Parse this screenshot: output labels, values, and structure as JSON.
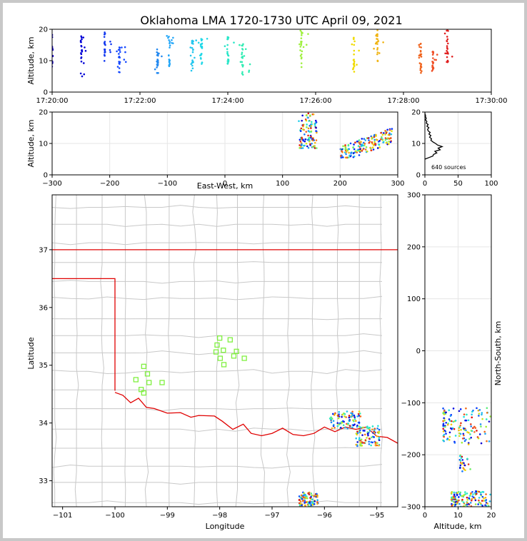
{
  "chart_data": [
    {
      "panel": "altitude-time",
      "type": "scatter",
      "title": "Oklahoma LMA 1720-1730 UTC April 09, 2021",
      "ylabel": "Altitude, km",
      "xlim": [
        "17:20:00",
        "17:30:00"
      ],
      "ylim": [
        0,
        20
      ],
      "x_tick_labels": [
        "17:20:00",
        "17:22:00",
        "17:24:00",
        "17:26:00",
        "17:28:00",
        "17:30:00"
      ],
      "y_tick_labels": [
        "0",
        "10",
        "20"
      ],
      "color_scale": "time",
      "flash_groups": [
        {
          "time": "17:20:00",
          "alt_range": [
            8,
            20
          ],
          "color": "#1400c8"
        },
        {
          "time": "17:20:40",
          "alt_range": [
            5,
            18
          ],
          "color": "#0000d6"
        },
        {
          "time": "17:21:12",
          "alt_range": [
            9,
            19
          ],
          "color": "#1238f0"
        },
        {
          "time": "17:21:32",
          "alt_range": [
            6,
            15
          ],
          "color": "#1448ff"
        },
        {
          "time": "17:22:24",
          "alt_range": [
            6,
            14
          ],
          "color": "#2288f0"
        },
        {
          "time": "17:22:40",
          "alt_range": [
            8,
            18
          ],
          "color": "#22a6f8"
        },
        {
          "time": "17:23:12",
          "alt_range": [
            5.5,
            17
          ],
          "color": "#22c6ee"
        },
        {
          "time": "17:23:24",
          "alt_range": [
            8.5,
            18
          ],
          "color": "#20d8e8"
        },
        {
          "time": "17:24:00",
          "alt_range": [
            9,
            18
          ],
          "color": "#28e6c8"
        },
        {
          "time": "17:24:20",
          "alt_range": [
            5.5,
            16
          ],
          "color": "#32ecb4"
        },
        {
          "time": "17:25:40",
          "alt_range": [
            7,
            20
          ],
          "color": "#a0f040"
        },
        {
          "time": "17:26:52",
          "alt_range": [
            6,
            18
          ],
          "color": "#f0dc00"
        },
        {
          "time": "17:27:24",
          "alt_range": [
            9,
            20
          ],
          "color": "#f0b414"
        },
        {
          "time": "17:28:24",
          "alt_range": [
            6,
            16
          ],
          "color": "#f0641e"
        },
        {
          "time": "17:28:40",
          "alt_range": [
            6.5,
            13
          ],
          "color": "#f05028"
        },
        {
          "time": "17:29:00",
          "alt_range": [
            9,
            20
          ],
          "color": "#e01e1e"
        }
      ]
    },
    {
      "panel": "altitude-eastwest",
      "type": "scatter",
      "xlabel": "East-West, km",
      "ylabel": "Altitude, km",
      "xlim": [
        -300,
        300
      ],
      "ylim": [
        0,
        20
      ],
      "x_tick_labels": [
        "−300",
        "−200",
        "−100",
        "0",
        "100",
        "200",
        "300"
      ],
      "y_tick_labels": [
        "0",
        "10",
        "20"
      ],
      "clusters": [
        {
          "x_range": [
            128,
            160
          ],
          "alt_range": [
            8.5,
            20
          ]
        },
        {
          "x_range": [
            200,
            290
          ],
          "alt_range": [
            5.5,
            19
          ]
        }
      ]
    },
    {
      "panel": "altitude-histogram",
      "type": "line",
      "xlim": [
        0,
        100
      ],
      "ylim": [
        0,
        20
      ],
      "x_tick_labels": [
        "0",
        "50",
        "100"
      ],
      "y_tick_labels": [
        "0",
        "10",
        "20"
      ],
      "annotation": "640 sources",
      "profile": [
        {
          "alt": 5.0,
          "count": 0
        },
        {
          "alt": 5.5,
          "count": 6
        },
        {
          "alt": 6.0,
          "count": 12
        },
        {
          "alt": 6.5,
          "count": 13
        },
        {
          "alt": 7.0,
          "count": 18
        },
        {
          "alt": 7.5,
          "count": 15
        },
        {
          "alt": 8.0,
          "count": 23
        },
        {
          "alt": 8.5,
          "count": 20
        },
        {
          "alt": 9.0,
          "count": 26
        },
        {
          "alt": 9.5,
          "count": 19
        },
        {
          "alt": 10.0,
          "count": 16
        },
        {
          "alt": 10.5,
          "count": 12
        },
        {
          "alt": 11.0,
          "count": 9
        },
        {
          "alt": 11.5,
          "count": 10
        },
        {
          "alt": 12.0,
          "count": 7
        },
        {
          "alt": 12.5,
          "count": 9
        },
        {
          "alt": 13.0,
          "count": 6
        },
        {
          "alt": 13.5,
          "count": 8
        },
        {
          "alt": 14.0,
          "count": 5
        },
        {
          "alt": 14.5,
          "count": 4
        },
        {
          "alt": 15.0,
          "count": 6
        },
        {
          "alt": 15.5,
          "count": 3
        },
        {
          "alt": 16.0,
          "count": 5
        },
        {
          "alt": 16.5,
          "count": 2
        },
        {
          "alt": 17.0,
          "count": 3
        },
        {
          "alt": 17.5,
          "count": 1
        },
        {
          "alt": 18.0,
          "count": 2
        },
        {
          "alt": 18.5,
          "count": 1
        },
        {
          "alt": 19.0,
          "count": 1
        },
        {
          "alt": 19.5,
          "count": 0
        },
        {
          "alt": 20.0,
          "count": 0
        }
      ]
    },
    {
      "panel": "plan-view-map",
      "type": "scatter",
      "xlabel": "Longitude",
      "ylabel": "Latitude",
      "xlim": [
        -101.2,
        -94.6
      ],
      "ylim": [
        32.55,
        37.95
      ],
      "x_tick_labels": [
        "−101",
        "−100",
        "−99",
        "−98",
        "−97",
        "−96",
        "−95"
      ],
      "y_tick_labels": [
        "33",
        "34",
        "35",
        "36",
        "37"
      ],
      "state_border_color": "#e00000",
      "county_line_color": "#c8c8c8",
      "station_color": "#80f040",
      "stations": [
        {
          "lon": -99.45,
          "lat": 34.98
        },
        {
          "lon": -99.38,
          "lat": 34.85
        },
        {
          "lon": -99.6,
          "lat": 34.75
        },
        {
          "lon": -99.35,
          "lat": 34.7
        },
        {
          "lon": -99.1,
          "lat": 34.7
        },
        {
          "lon": -99.5,
          "lat": 34.58
        },
        {
          "lon": -99.45,
          "lat": 34.52
        },
        {
          "lon": -98.0,
          "lat": 35.47
        },
        {
          "lon": -98.05,
          "lat": 35.35
        },
        {
          "lon": -97.8,
          "lat": 35.44
        },
        {
          "lon": -98.07,
          "lat": 35.23
        },
        {
          "lon": -97.93,
          "lat": 35.26
        },
        {
          "lon": -97.68,
          "lat": 35.24
        },
        {
          "lon": -97.73,
          "lat": 35.16
        },
        {
          "lon": -97.99,
          "lat": 35.12
        },
        {
          "lon": -97.53,
          "lat": 35.12
        },
        {
          "lon": -97.92,
          "lat": 35.01
        }
      ],
      "source_clusters": [
        {
          "lon_range": [
            -95.9,
            -95.3
          ],
          "lat_range": [
            33.9,
            34.2
          ]
        },
        {
          "lon_range": [
            -95.4,
            -94.95
          ],
          "lat_range": [
            33.6,
            33.95
          ]
        },
        {
          "lon_range": [
            -96.5,
            -96.1
          ],
          "lat_range": [
            32.55,
            32.8
          ]
        }
      ]
    },
    {
      "panel": "altitude-northsouth",
      "type": "scatter",
      "xlabel": "Altitude, km",
      "ylabel": "North-South, km",
      "xlim": [
        0,
        20
      ],
      "ylim": [
        -300,
        300
      ],
      "x_tick_labels": [
        "0",
        "10",
        "20"
      ],
      "y_tick_labels": [
        "−300",
        "−200",
        "−100",
        "0",
        "100",
        "200",
        "300"
      ],
      "clusters": [
        {
          "alt_range": [
            5.5,
            20
          ],
          "y_range": [
            -180,
            -110
          ]
        },
        {
          "alt_range": [
            10.5,
            14
          ],
          "y_range": [
            -232,
            -200
          ]
        },
        {
          "alt_range": [
            8,
            20
          ],
          "y_range": [
            -300,
            -270
          ]
        }
      ]
    }
  ]
}
